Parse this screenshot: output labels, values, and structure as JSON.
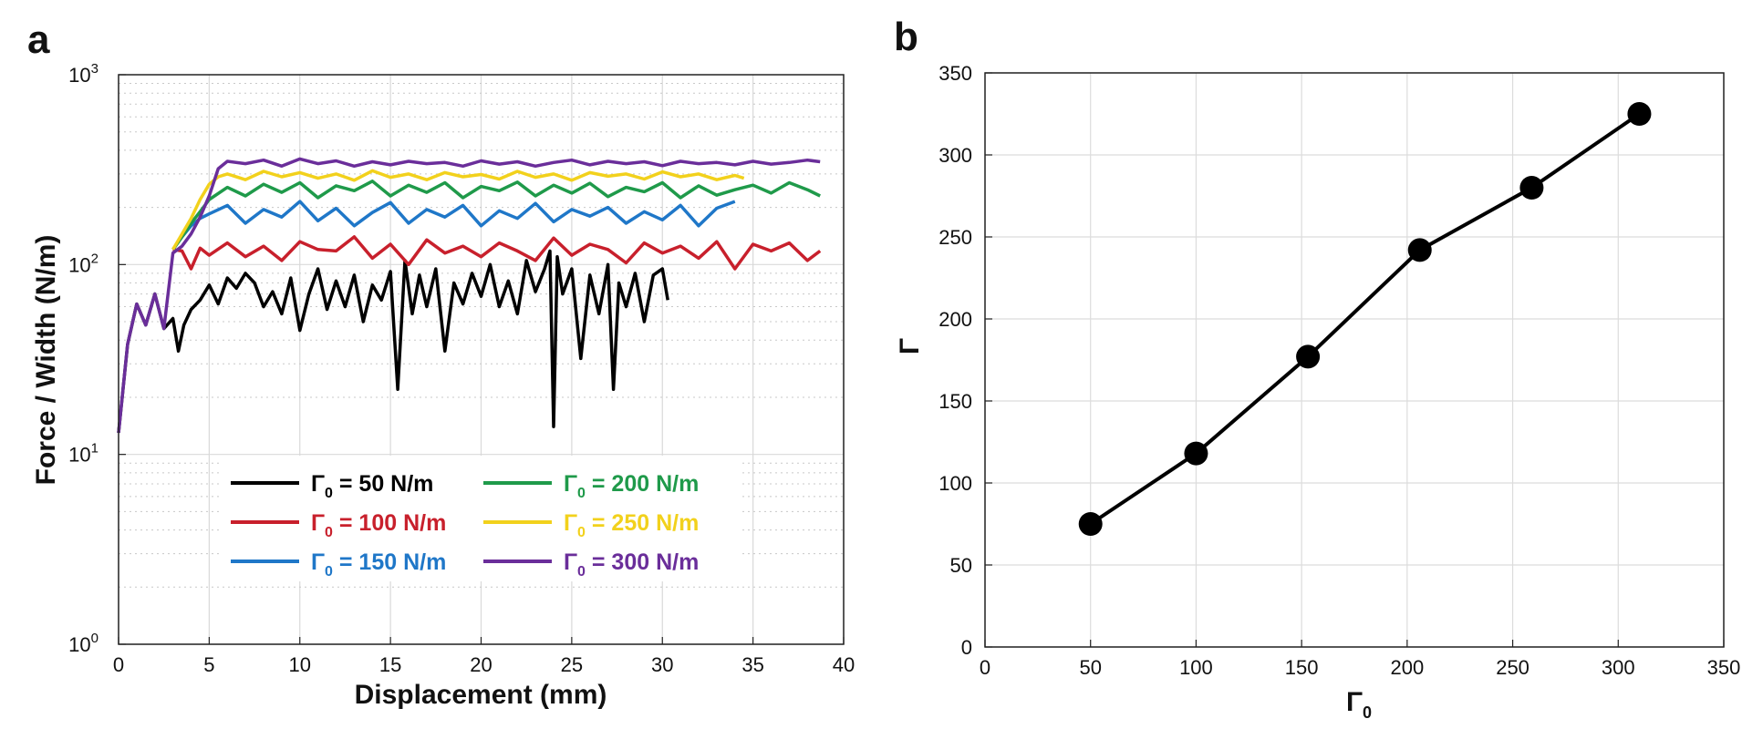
{
  "chart_data": [
    {
      "panel_label": "a",
      "type": "line",
      "xlabel": "Displacement (mm)",
      "ylabel": "Force / Width (N/m)",
      "xlim": [
        0,
        40
      ],
      "ylim": [
        1,
        1000
      ],
      "yscale": "log",
      "grid": true,
      "minor_grid": true,
      "x_ticks": [
        0,
        5,
        10,
        15,
        20,
        25,
        30,
        35,
        40
      ],
      "x_tick_labels": [
        "0",
        "5",
        "10",
        "15",
        "20",
        "25",
        "30",
        "35",
        "40"
      ],
      "y_tick_labels": [
        {
          "value": 1,
          "base": "10",
          "exp": "0"
        },
        {
          "value": 10,
          "base": "10",
          "exp": "1"
        },
        {
          "value": 100,
          "base": "10",
          "exp": "2"
        },
        {
          "value": 1000,
          "base": "10",
          "exp": "3"
        }
      ],
      "legend_placement": "lower-center",
      "series": [
        {
          "label": "Γ",
          "sub": "0",
          "suffix": " = 50 N/m",
          "color": "#000000",
          "x": [
            0.0,
            0.5,
            1.0,
            1.5,
            2.0,
            2.5,
            3.0,
            3.3,
            3.6,
            4.0,
            4.5,
            5.0,
            5.5,
            6.0,
            6.5,
            7.0,
            7.5,
            8.0,
            8.5,
            9.0,
            9.5,
            10.0,
            10.5,
            11.0,
            11.5,
            12.0,
            12.5,
            13.0,
            13.5,
            14.0,
            14.5,
            15.0,
            15.4,
            15.8,
            16.2,
            16.6,
            17.0,
            17.5,
            18.0,
            18.5,
            19.0,
            19.5,
            20.0,
            20.5,
            21.0,
            21.5,
            22.0,
            22.5,
            23.0,
            23.5,
            23.8,
            24.0,
            24.2,
            24.5,
            25.0,
            25.5,
            26.0,
            26.5,
            27.0,
            27.3,
            27.6,
            28.0,
            28.5,
            29.0,
            29.5,
            30.0,
            30.3
          ],
          "y": [
            13,
            38,
            62,
            48,
            70,
            46,
            52,
            35,
            48,
            58,
            65,
            78,
            62,
            85,
            75,
            90,
            80,
            60,
            72,
            55,
            85,
            45,
            70,
            95,
            58,
            82,
            60,
            88,
            50,
            78,
            65,
            92,
            22,
            105,
            55,
            88,
            60,
            95,
            35,
            80,
            62,
            90,
            68,
            100,
            60,
            82,
            55,
            105,
            72,
            95,
            118,
            14,
            110,
            70,
            95,
            32,
            88,
            55,
            100,
            22,
            80,
            60,
            90,
            50,
            88,
            95,
            65
          ]
        },
        {
          "label": "Γ",
          "sub": "0",
          "suffix": " = 100 N/m",
          "color": "#c8202c",
          "x": [
            3.0,
            3.5,
            4.0,
            4.5,
            5.0,
            6,
            7,
            8,
            9,
            10,
            11,
            12,
            13,
            14,
            15,
            16,
            17,
            18,
            19,
            20,
            21,
            22,
            23,
            24,
            25,
            26,
            27,
            28,
            29,
            30,
            31,
            32,
            33,
            34,
            35,
            36,
            37,
            38,
            38.7
          ],
          "y": [
            120,
            118,
            95,
            122,
            112,
            130,
            110,
            125,
            105,
            132,
            120,
            118,
            140,
            108,
            128,
            100,
            135,
            115,
            125,
            110,
            130,
            118,
            105,
            138,
            112,
            128,
            120,
            102,
            130,
            115,
            125,
            108,
            132,
            95,
            128,
            118,
            130,
            105,
            118
          ]
        },
        {
          "label": "Γ",
          "sub": "0",
          "suffix": " = 150 N/m",
          "color": "#1f77c8",
          "x": [
            3.0,
            3.5,
            4.0,
            4.5,
            5.0,
            6,
            7,
            8,
            9,
            10,
            11,
            12,
            13,
            14,
            15,
            16,
            17,
            18,
            19,
            20,
            21,
            22,
            23,
            24,
            25,
            26,
            27,
            28,
            29,
            30,
            31,
            32,
            33,
            34
          ],
          "y": [
            120,
            140,
            160,
            175,
            185,
            205,
            165,
            195,
            178,
            215,
            170,
            198,
            160,
            188,
            212,
            165,
            195,
            178,
            205,
            160,
            192,
            175,
            210,
            168,
            195,
            180,
            200,
            165,
            190,
            172,
            205,
            160,
            198,
            215
          ]
        },
        {
          "label": "Γ",
          "sub": "0",
          "suffix": " = 200 N/m",
          "color": "#1f9a4a",
          "x": [
            3.0,
            3.5,
            4.0,
            4.5,
            5.0,
            6,
            7,
            8,
            9,
            10,
            11,
            12,
            13,
            14,
            15,
            16,
            17,
            18,
            19,
            20,
            21,
            22,
            23,
            24,
            25,
            26,
            27,
            28,
            29,
            30,
            31,
            32,
            33,
            34,
            35,
            36,
            37,
            38,
            38.7
          ],
          "y": [
            120,
            140,
            165,
            190,
            220,
            255,
            230,
            265,
            240,
            270,
            225,
            260,
            245,
            275,
            230,
            262,
            240,
            270,
            225,
            258,
            245,
            272,
            230,
            262,
            238,
            268,
            228,
            255,
            242,
            270,
            225,
            260,
            232,
            248,
            262,
            238,
            270,
            248,
            230
          ]
        },
        {
          "label": "Γ",
          "sub": "0",
          "suffix": " = 250 N/m",
          "color": "#f2d11c",
          "x": [
            3.0,
            3.5,
            4.0,
            4.5,
            5.0,
            5.5,
            6,
            7,
            8,
            9,
            10,
            11,
            12,
            13,
            14,
            15,
            16,
            17,
            18,
            19,
            20,
            21,
            22,
            23,
            24,
            25,
            26,
            27,
            28,
            29,
            30,
            31,
            32,
            33,
            34,
            34.5
          ],
          "y": [
            120,
            145,
            175,
            220,
            265,
            290,
            300,
            280,
            310,
            290,
            305,
            285,
            300,
            278,
            312,
            288,
            300,
            280,
            305,
            290,
            298,
            282,
            310,
            288,
            300,
            278,
            305,
            292,
            300,
            282,
            308,
            290,
            300,
            280,
            295,
            285
          ]
        },
        {
          "label": "Γ",
          "sub": "0",
          "suffix": " = 300 N/m",
          "color": "#6a2e9a",
          "x": [
            0.0,
            0.5,
            1.0,
            1.5,
            2.0,
            2.5,
            3.0,
            3.5,
            4.0,
            4.5,
            5.0,
            5.5,
            6,
            7,
            8,
            9,
            10,
            11,
            12,
            13,
            14,
            15,
            16,
            17,
            18,
            19,
            20,
            21,
            22,
            23,
            24,
            25,
            26,
            27,
            28,
            29,
            30,
            31,
            32,
            33,
            34,
            35,
            36,
            37,
            38,
            38.7
          ],
          "y": [
            13,
            38,
            62,
            48,
            70,
            46,
            115,
            125,
            145,
            178,
            230,
            320,
            350,
            340,
            355,
            330,
            360,
            340,
            352,
            330,
            348,
            335,
            350,
            340,
            345,
            330,
            352,
            338,
            348,
            330,
            345,
            355,
            335,
            350,
            340,
            348,
            332,
            350,
            340,
            345,
            335,
            350,
            338,
            345,
            355,
            348
          ]
        }
      ]
    },
    {
      "panel_label": "b",
      "type": "line",
      "xlabel": "Γ",
      "xlabel_sub": "0",
      "ylabel": "Γ",
      "xlim": [
        0,
        350
      ],
      "ylim": [
        0,
        350
      ],
      "grid": true,
      "x_ticks": [
        0,
        50,
        100,
        150,
        200,
        250,
        300,
        350
      ],
      "x_tick_labels": [
        "0",
        "50",
        "100",
        "150",
        "200",
        "250",
        "300",
        "350"
      ],
      "y_ticks": [
        0,
        50,
        100,
        150,
        200,
        250,
        300,
        350
      ],
      "y_tick_labels": [
        "0",
        "50",
        "100",
        "150",
        "200",
        "250",
        "300",
        "350"
      ],
      "marker": "circle",
      "color": "#000000",
      "series": [
        {
          "x": [
            50,
            100,
            153,
            206,
            259,
            310
          ],
          "y": [
            75,
            118,
            177,
            242,
            280,
            325
          ]
        }
      ]
    }
  ]
}
